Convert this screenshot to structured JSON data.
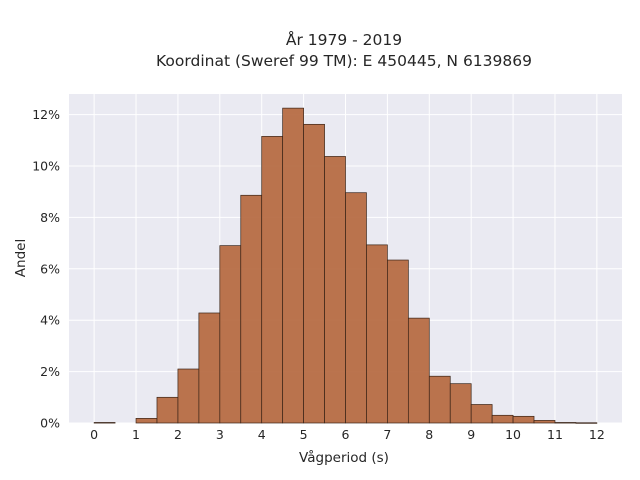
{
  "chart_data": {
    "type": "bar",
    "title_line1": "År 1979 - 2019",
    "title_line2": "Koordinat (Sweref 99 TM): E 450445, N 6139869",
    "xlabel": "Vågperiod (s)",
    "ylabel": "Andel",
    "xlim": [
      -0.6,
      12.6
    ],
    "ylim": [
      0,
      12.8
    ],
    "x_ticks": [
      "0",
      "1",
      "2",
      "3",
      "4",
      "5",
      "6",
      "7",
      "8",
      "9",
      "10",
      "11",
      "12"
    ],
    "y_ticks": [
      "0%",
      "2%",
      "4%",
      "6%",
      "8%",
      "10%",
      "12%"
    ],
    "grid": true,
    "bin_width": 0.5,
    "bins": [
      {
        "start": 0.0,
        "value": 0.02
      },
      {
        "start": 1.0,
        "value": 0.18
      },
      {
        "start": 1.5,
        "value": 1.0
      },
      {
        "start": 2.0,
        "value": 2.1
      },
      {
        "start": 2.5,
        "value": 4.28
      },
      {
        "start": 3.0,
        "value": 6.9
      },
      {
        "start": 3.5,
        "value": 8.86
      },
      {
        "start": 4.0,
        "value": 11.15
      },
      {
        "start": 4.5,
        "value": 12.25
      },
      {
        "start": 5.0,
        "value": 11.62
      },
      {
        "start": 5.5,
        "value": 10.37
      },
      {
        "start": 6.0,
        "value": 8.96
      },
      {
        "start": 6.5,
        "value": 6.93
      },
      {
        "start": 7.0,
        "value": 6.34
      },
      {
        "start": 7.5,
        "value": 4.08
      },
      {
        "start": 8.0,
        "value": 1.82
      },
      {
        "start": 8.5,
        "value": 1.53
      },
      {
        "start": 9.0,
        "value": 0.72
      },
      {
        "start": 9.5,
        "value": 0.3
      },
      {
        "start": 10.0,
        "value": 0.26
      },
      {
        "start": 10.5,
        "value": 0.1
      },
      {
        "start": 11.0,
        "value": 0.02
      },
      {
        "start": 11.5,
        "value": 0.01
      }
    ],
    "colors": {
      "bar_fill": "#b5683f",
      "bar_edge": "#3a2417",
      "plot_bg": "#eaeaf2",
      "grid": "#ffffff"
    }
  }
}
